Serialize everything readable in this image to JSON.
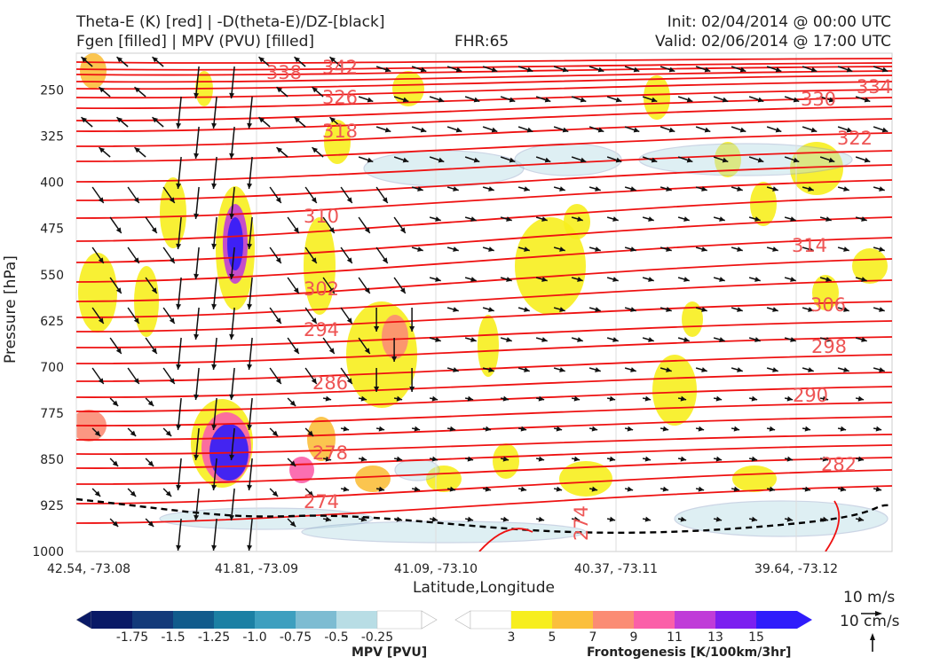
{
  "header": {
    "title_left_1": "Theta-E (K) [red] | -D(theta-E)/DZ-[black]",
    "title_left_2": "Fgen [filled] | MPV (PVU) [filled]",
    "fhr": "FHR:65",
    "init": "Init: 02/04/2014 @ 00:00 UTC",
    "valid": "Valid: 02/06/2014 @ 17:00 UTC"
  },
  "axes": {
    "ylabel": "Pressure [hPa]",
    "xlabel": "Latitude,Longitude",
    "y_ticks": [
      "250",
      "325",
      "400",
      "475",
      "550",
      "625",
      "700",
      "775",
      "850",
      "925",
      "1000"
    ],
    "x_ticks": [
      "42.54, -73.08",
      "41.81, -73.09",
      "41.09, -73.10",
      "40.37, -73.11",
      "39.64, -73.12"
    ]
  },
  "chart_data": {
    "type": "cross-section",
    "ylim": [
      1000,
      190
    ],
    "y_scale": "linear",
    "grid": true,
    "theta_e_labels": [
      "342",
      "338",
      "334",
      "330",
      "326",
      "322",
      "318",
      "314",
      "310",
      "306",
      "302",
      "298",
      "294",
      "290",
      "286",
      "282",
      "278",
      "274",
      "274"
    ]
  },
  "colorbars": {
    "mpv": {
      "label": "MPV [PVU]",
      "ticks": [
        "-1.75",
        "-1.5",
        "-1.25",
        "-1.0",
        "-0.75",
        "-0.5",
        "-0.25"
      ],
      "colors": [
        "#0a1a66",
        "#133a7a",
        "#115b8c",
        "#1b80a4",
        "#3d9fbf",
        "#7dbcd2",
        "#b8dde5",
        "#ffffff"
      ]
    },
    "fgen": {
      "label": "Frontogenesis [K/100km/3hr]",
      "ticks": [
        "3",
        "5",
        "7",
        "9",
        "11",
        "13",
        "15"
      ],
      "colors": [
        "#ffffff",
        "#f7ee1e",
        "#fbbf3c",
        "#fb8c74",
        "#fb5fa8",
        "#c03cd8",
        "#7c1ff0",
        "#2f1cfb"
      ]
    }
  },
  "vector_reference": {
    "horizontal": "10 m/s",
    "vertical": "10 cm/s"
  }
}
